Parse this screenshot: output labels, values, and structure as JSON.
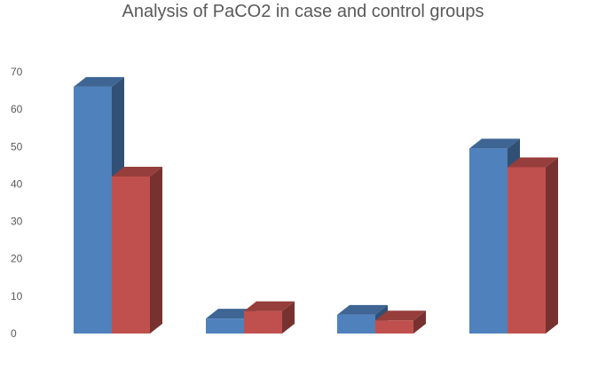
{
  "chart_data": {
    "type": "bar",
    "title": "Analysis of PaCO2 in case and control groups",
    "xlabel": "",
    "ylabel": "",
    "categories": [
      "",
      "",
      "",
      ""
    ],
    "series": [
      {
        "values": [
          66,
          4,
          5,
          49.5
        ],
        "color": "#4f81bd"
      },
      {
        "values": [
          42,
          6,
          3.5,
          44.5
        ],
        "color": "#c0504d"
      }
    ],
    "ylim": [
      0,
      70
    ],
    "yticks": [
      0,
      10,
      20,
      30,
      40,
      50,
      60,
      70
    ],
    "grid": false,
    "legend": "none",
    "style": "3d-clustered-column"
  }
}
